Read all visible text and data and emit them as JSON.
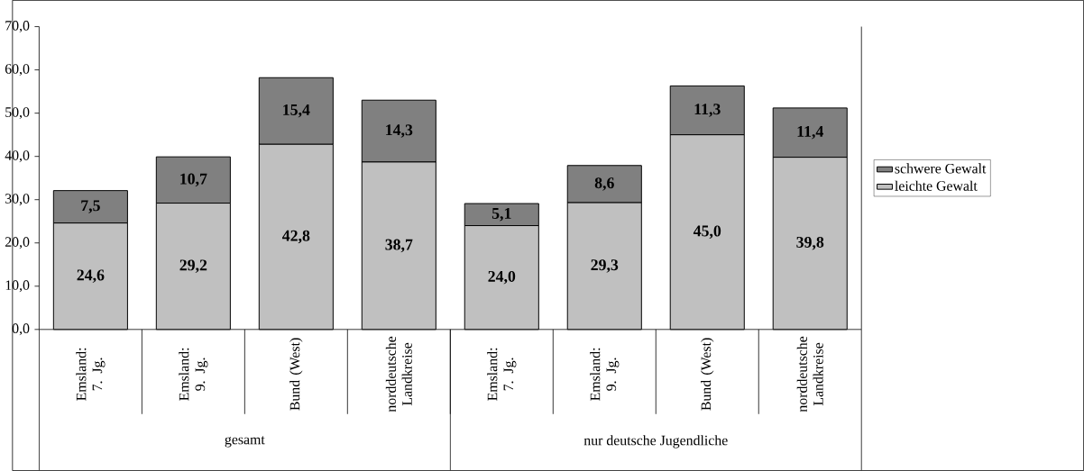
{
  "chart_data": {
    "type": "bar",
    "stacked": true,
    "categories": [
      "Emsland: 7. Jg.",
      "Emsland: 9. Jg.",
      "Bund (West)",
      "norddeutsche Landkreise",
      "Emsland: 7. Jg.",
      "Emsland: 9. Jg.",
      "Bund (West)",
      "norddeutsche Landkreise"
    ],
    "series": [
      {
        "name": "leichte Gewalt",
        "color": "#c0c0c0",
        "values": [
          24.6,
          29.2,
          42.8,
          38.7,
          24.0,
          29.3,
          45.0,
          39.8
        ],
        "value_labels": [
          "24,6",
          "29,2",
          "42,8",
          "38,7",
          "24,0",
          "29,3",
          "45,0",
          "39,8"
        ]
      },
      {
        "name": "schwere Gewalt",
        "color": "#808080",
        "values": [
          7.5,
          10.7,
          15.4,
          14.3,
          5.1,
          8.6,
          11.3,
          11.4
        ],
        "value_labels": [
          "7,5",
          "10,7",
          "15,4",
          "14,3",
          "5,1",
          "8,6",
          "11,3",
          "11,4"
        ]
      }
    ],
    "ylim": [
      0,
      70
    ],
    "yticks": [
      {
        "value": 0,
        "label": "0,0"
      },
      {
        "value": 10,
        "label": "10,0"
      },
      {
        "value": 20,
        "label": "20,0"
      },
      {
        "value": 30,
        "label": "30,0"
      },
      {
        "value": 40,
        "label": "40,0"
      },
      {
        "value": 50,
        "label": "50,0"
      },
      {
        "value": 60,
        "label": "60,0"
      },
      {
        "value": 70,
        "label": "70,0"
      }
    ],
    "annotations": [
      "gesamt",
      "nur deutsche Jugendliche"
    ],
    "legend": "right",
    "grid": false
  }
}
